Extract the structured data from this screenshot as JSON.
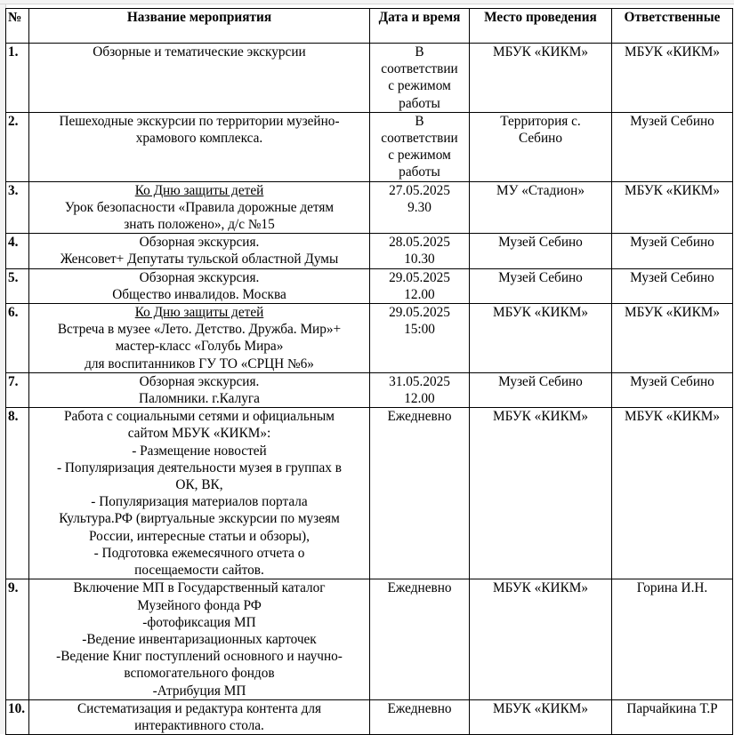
{
  "header": [
    "№",
    "Название мероприятия",
    "Дата и время",
    "Место проведения",
    "Ответственные"
  ],
  "rows": [
    {
      "num": "1.",
      "title": [
        "Обзорные и тематические экскурсии"
      ],
      "date": [
        "В",
        "соответствии",
        "с режимом",
        "работы"
      ],
      "place": [
        "МБУК «КИКМ»"
      ],
      "resp": [
        "МБУК «КИКМ»"
      ]
    },
    {
      "num": "2.",
      "title": [
        "Пешеходные экскурсии по территории музейно-",
        "храмового комплекса."
      ],
      "date": [
        "В",
        "соответствии",
        "с режимом",
        "работы"
      ],
      "place": [
        "Территория с.",
        "Себино"
      ],
      "resp": [
        "Музей Себино"
      ]
    },
    {
      "num": "3.",
      "underline_first": true,
      "title": [
        "Ко Дню защиты детей",
        "Урок безопасности «Правила дорожные детям",
        "знать положено», д/с №15"
      ],
      "date": [
        "27.05.2025",
        "9.30"
      ],
      "place": [
        "МУ «Стадион»"
      ],
      "resp": [
        "МБУК «КИКМ»"
      ]
    },
    {
      "num": "4.",
      "title": [
        "Обзорная экскурсия.",
        "Женсовет+ Депутаты тульской областной Думы"
      ],
      "date": [
        "28.05.2025",
        "10.30"
      ],
      "place": [
        "Музей Себино"
      ],
      "resp": [
        "Музей Себино"
      ]
    },
    {
      "num": "5.",
      "title": [
        "Обзорная экскурсия.",
        "Общество инвалидов. Москва"
      ],
      "date": [
        "29.05.2025",
        "12.00"
      ],
      "place": [
        "Музей Себино"
      ],
      "resp": [
        "Музей Себино"
      ]
    },
    {
      "num": "6.",
      "underline_first": true,
      "title": [
        "Ко Дню защиты детей",
        "Встреча в музее «Лето. Детство. Дружба. Мир»+",
        "мастер-класс «Голубь Мира»",
        "для воспитанников ГУ ТО «СРЦН №6»"
      ],
      "date": [
        "29.05.2025",
        "15:00"
      ],
      "place": [
        "МБУК «КИКМ»"
      ],
      "resp": [
        "МБУК «КИКМ»"
      ]
    },
    {
      "num": "7.",
      "title": [
        "Обзорная экскурсия.",
        "Паломники. г.Калуга"
      ],
      "date": [
        "31.05.2025",
        "12.00"
      ],
      "place": [
        "Музей Себино"
      ],
      "resp": [
        "Музей Себино"
      ]
    },
    {
      "num": "8.",
      "title": [
        "Работа с социальными сетями и официальным",
        "сайтом МБУК «КИКМ»:",
        "- Размещение новостей",
        "- Популяризация деятельности музея в группах  в",
        "ОК, ВК,",
        "- Популяризация материалов портала",
        "Культура.РФ (виртуальные экскурсии по музеям",
        "России, интересные статьи и обзоры),",
        "- Подготовка ежемесячного отчета о",
        "посещаемости сайтов."
      ],
      "date": [
        "Ежедневно"
      ],
      "place": [
        "МБУК «КИКМ»"
      ],
      "resp": [
        "МБУК «КИКМ»"
      ]
    },
    {
      "num": "9.",
      "title": [
        "Включение МП в Государственный каталог",
        "Музейного фонда РФ",
        "-фотофиксация МП",
        "-Ведение инвентаризационных карточек",
        "-Ведение Книг поступлений основного и  научно-",
        "вспомогательного фондов",
        "-Атрибуция МП"
      ],
      "date": [
        "Ежедневно"
      ],
      "place": [
        "МБУК «КИКМ»"
      ],
      "resp": [
        "Горина И.Н."
      ]
    },
    {
      "num": "10.",
      "title": [
        "Систематизация и редактура  контента для",
        "интерактивного стола."
      ],
      "date": [
        "Ежедневно"
      ],
      "place": [
        "МБУК «КИКМ»"
      ],
      "resp": [
        "Парчайкина Т.Р"
      ]
    }
  ]
}
